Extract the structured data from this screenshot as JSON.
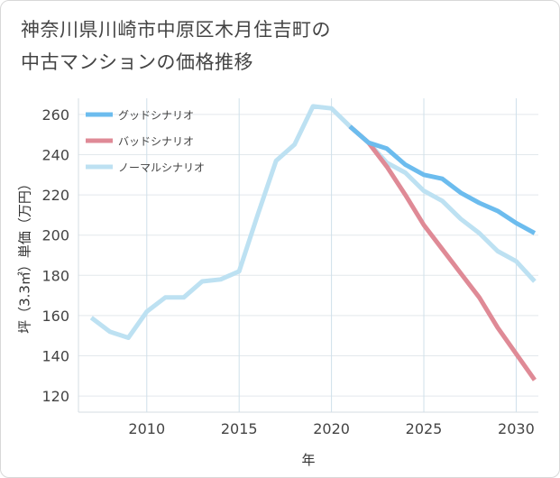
{
  "chart_data": {
    "type": "line",
    "title": [
      "神奈川県川崎市中原区木月住吉町の",
      "中古マンションの価格推移"
    ],
    "xlabel": "年",
    "ylabel": "坪（3.3㎡）単価（万円）",
    "xlim": [
      2006.3,
      2031.2
    ],
    "ylim": [
      112,
      268
    ],
    "x_ticks": [
      2010,
      2015,
      2020,
      2025,
      2030
    ],
    "y_ticks": [
      120,
      140,
      160,
      180,
      200,
      220,
      240,
      260
    ],
    "legend_position": "top-left",
    "series": [
      {
        "name": "グッドシナリオ",
        "color": "#6cbcee",
        "x": [
          2021,
          2022,
          2023,
          2024,
          2025,
          2026,
          2027,
          2028,
          2029,
          2030,
          2031
        ],
        "values": [
          254,
          246,
          243,
          235,
          230,
          228,
          221,
          216,
          212,
          206,
          201
        ]
      },
      {
        "name": "バッドシナリオ",
        "color": "#df8a96",
        "x": [
          2021,
          2022,
          2023,
          2024,
          2025,
          2026,
          2027,
          2028,
          2029,
          2030,
          2031
        ],
        "values": [
          254,
          246,
          234,
          220,
          205,
          193,
          181,
          169,
          154,
          141,
          128
        ]
      },
      {
        "name": "ノーマルシナリオ",
        "color": "#bde1f2",
        "x": [
          2007,
          2008,
          2009,
          2010,
          2011,
          2012,
          2013,
          2014,
          2015,
          2016,
          2017,
          2018,
          2019,
          2020,
          2021,
          2022,
          2023,
          2024,
          2025,
          2026,
          2027,
          2028,
          2029,
          2030,
          2031
        ],
        "values": [
          159,
          152,
          149,
          162,
          169,
          169,
          177,
          178,
          182,
          210,
          237,
          245,
          264,
          263,
          254,
          246,
          236,
          231,
          222,
          217,
          208,
          201,
          192,
          187,
          177
        ]
      }
    ]
  }
}
